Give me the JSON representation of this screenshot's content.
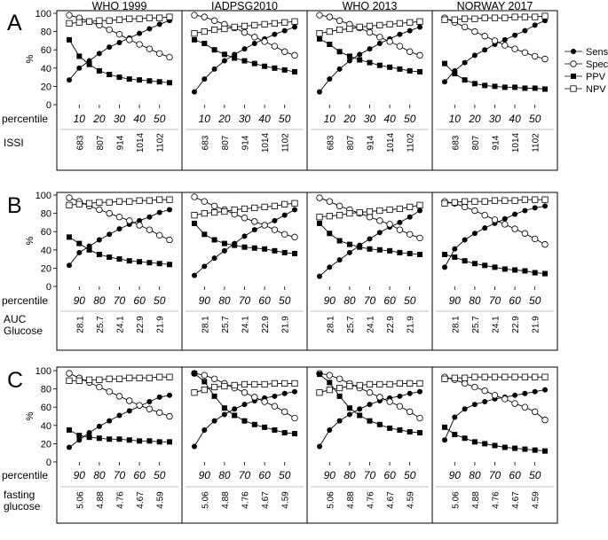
{
  "figure": {
    "columns": [
      "WHO 1999",
      "IADPSG2010",
      "WHO 2013",
      "NORWAY 2017"
    ],
    "legend": [
      "Sens",
      "Spec",
      "PPV",
      "NPV"
    ],
    "y_axis_label": "%",
    "y_ticks": [
      "0",
      "20",
      "40",
      "60",
      "80",
      "100"
    ],
    "percentile_label": "percentile"
  },
  "chart_data": [
    {
      "type": "line",
      "panel": "A",
      "metric_label": "ISSI",
      "percentile_ticks": [
        "10",
        "20",
        "30",
        "40",
        "50"
      ],
      "metric_ticks": [
        "683",
        "807",
        "914",
        "1014",
        "1102"
      ],
      "ylim": [
        0,
        100
      ],
      "x": [
        5,
        10,
        15,
        20,
        25,
        30,
        35,
        40,
        45,
        50,
        55
      ],
      "subplots": [
        {
          "title": "WHO 1999",
          "series": [
            {
              "name": "Sens",
              "values": [
                27,
                40,
                48,
                56,
                63,
                68,
                73,
                78,
                83,
                88,
                92
              ]
            },
            {
              "name": "Spec",
              "values": [
                98,
                95,
                91,
                87,
                82,
                77,
                71,
                66,
                61,
                56,
                52
              ]
            },
            {
              "name": "PPV",
              "values": [
                71,
                53,
                44,
                37,
                33,
                30,
                28,
                27,
                26,
                25,
                24
              ]
            },
            {
              "name": "NPV",
              "values": [
                89,
                90,
                91,
                92,
                92,
                93,
                94,
                94,
                95,
                95,
                96
              ]
            }
          ]
        },
        {
          "title": "IADPSG2010",
          "series": [
            {
              "name": "Sens",
              "values": [
                14,
                28,
                39,
                48,
                55,
                61,
                67,
                72,
                77,
                81,
                85
              ]
            },
            {
              "name": "Spec",
              "values": [
                98,
                96,
                92,
                88,
                84,
                79,
                74,
                69,
                64,
                58,
                54
              ]
            },
            {
              "name": "PPV",
              "values": [
                71,
                67,
                60,
                55,
                51,
                48,
                45,
                42,
                40,
                38,
                36
              ]
            },
            {
              "name": "NPV",
              "values": [
                78,
                80,
                82,
                83,
                85,
                86,
                87,
                88,
                89,
                90,
                91
              ]
            }
          ]
        },
        {
          "title": "WHO 2013",
          "series": [
            {
              "name": "Sens",
              "values": [
                14,
                28,
                39,
                48,
                55,
                61,
                67,
                72,
                77,
                81,
                85
              ]
            },
            {
              "name": "Spec",
              "values": [
                98,
                96,
                92,
                88,
                84,
                79,
                74,
                69,
                64,
                58,
                54
              ]
            },
            {
              "name": "PPV",
              "values": [
                72,
                66,
                58,
                53,
                49,
                46,
                43,
                41,
                39,
                37,
                36
              ]
            },
            {
              "name": "NPV",
              "values": [
                78,
                80,
                82,
                83,
                85,
                86,
                87,
                88,
                89,
                90,
                91
              ]
            }
          ]
        },
        {
          "title": "NORWAY 2017",
          "series": [
            {
              "name": "Sens",
              "values": [
                25,
                37,
                46,
                54,
                60,
                66,
                71,
                76,
                81,
                87,
                92
              ]
            },
            {
              "name": "Spec",
              "values": [
                95,
                90,
                85,
                80,
                75,
                70,
                65,
                61,
                57,
                53,
                50
              ]
            },
            {
              "name": "PPV",
              "values": [
                45,
                34,
                27,
                23,
                21,
                20,
                19,
                19,
                18,
                18,
                17
              ]
            },
            {
              "name": "NPV",
              "values": [
                93,
                93,
                94,
                94,
                95,
                95,
                95,
                96,
                96,
                96,
                97
              ]
            }
          ]
        }
      ]
    },
    {
      "type": "line",
      "panel": "B",
      "metric_label": "AUC\nGlucose",
      "percentile_ticks": [
        "90",
        "80",
        "70",
        "60",
        "50"
      ],
      "metric_ticks": [
        "28.1",
        "25.7",
        "24.1",
        "22.9",
        "21.9"
      ],
      "ylim": [
        0,
        100
      ],
      "x": [
        95,
        90,
        85,
        80,
        75,
        70,
        65,
        60,
        55,
        50,
        45
      ],
      "subplots": [
        {
          "title": "WHO 1999",
          "series": [
            {
              "name": "Sens",
              "values": [
                23,
                37,
                44,
                51,
                57,
                63,
                68,
                72,
                76,
                81,
                84
              ]
            },
            {
              "name": "Spec",
              "values": [
                97,
                93,
                88,
                84,
                80,
                76,
                72,
                67,
                62,
                56,
                51
              ]
            },
            {
              "name": "PPV",
              "values": [
                54,
                47,
                40,
                35,
                32,
                30,
                28,
                27,
                26,
                25,
                24
              ]
            },
            {
              "name": "NPV",
              "values": [
                89,
                90,
                91,
                92,
                92,
                93,
                93,
                94,
                94,
                95,
                95
              ]
            }
          ]
        },
        {
          "title": "IADPSG2010",
          "series": [
            {
              "name": "Sens",
              "values": [
                12,
                22,
                31,
                39,
                47,
                55,
                62,
                67,
                72,
                78,
                84
              ]
            },
            {
              "name": "Spec",
              "values": [
                98,
                93,
                88,
                84,
                79,
                75,
                71,
                67,
                62,
                57,
                54
              ]
            },
            {
              "name": "PPV",
              "values": [
                69,
                57,
                51,
                47,
                45,
                43,
                42,
                41,
                39,
                37,
                36
              ]
            },
            {
              "name": "NPV",
              "values": [
                78,
                80,
                81,
                82,
                84,
                85,
                86,
                87,
                88,
                90,
                91
              ]
            }
          ]
        },
        {
          "title": "WHO 2013",
          "series": [
            {
              "name": "Sens",
              "values": [
                11,
                21,
                29,
                37,
                45,
                52,
                59,
                65,
                70,
                76,
                83
              ]
            },
            {
              "name": "Spec",
              "values": [
                97,
                93,
                88,
                84,
                80,
                76,
                72,
                68,
                62,
                57,
                53
              ]
            },
            {
              "name": "PPV",
              "values": [
                69,
                58,
                50,
                46,
                43,
                41,
                40,
                39,
                37,
                36,
                35
              ]
            },
            {
              "name": "NPV",
              "values": [
                76,
                77,
                78,
                80,
                81,
                82,
                83,
                84,
                85,
                87,
                89
              ]
            }
          ]
        },
        {
          "title": "NORWAY 2017",
          "series": [
            {
              "name": "Sens",
              "values": [
                21,
                41,
                51,
                58,
                64,
                69,
                74,
                79,
                83,
                86,
                88
              ]
            },
            {
              "name": "Spec",
              "values": [
                93,
                91,
                87,
                83,
                78,
                73,
                68,
                63,
                58,
                52,
                46
              ]
            },
            {
              "name": "PPV",
              "values": [
                35,
                32,
                28,
                25,
                23,
                21,
                19,
                18,
                17,
                15,
                14
              ]
            },
            {
              "name": "NPV",
              "values": [
                91,
                92,
                93,
                93,
                93,
                94,
                94,
                94,
                95,
                95,
                95
              ]
            }
          ]
        }
      ]
    },
    {
      "type": "line",
      "panel": "C",
      "metric_label": "fasting\nglucose",
      "percentile_ticks": [
        "90",
        "80",
        "70",
        "60",
        "50"
      ],
      "metric_ticks": [
        "5.06",
        "4.88",
        "4.76",
        "4.67",
        "4.59"
      ],
      "ylim": [
        0,
        100
      ],
      "x": [
        95,
        90,
        85,
        80,
        75,
        70,
        65,
        60,
        55,
        50,
        45
      ],
      "subplots": [
        {
          "title": "WHO 1999",
          "series": [
            {
              "name": "Sens",
              "values": [
                16,
                24,
                32,
                39,
                45,
                51,
                56,
                61,
                66,
                71,
                73
              ]
            },
            {
              "name": "Spec",
              "values": [
                97,
                92,
                87,
                82,
                77,
                72,
                67,
                62,
                58,
                54,
                50
              ]
            },
            {
              "name": "PPV",
              "values": [
                35,
                29,
                27,
                26,
                25,
                25,
                24,
                23,
                23,
                22,
                22
              ]
            },
            {
              "name": "NPV",
              "values": [
                89,
                89,
                90,
                90,
                91,
                91,
                92,
                92,
                92,
                93,
                93
              ]
            }
          ]
        },
        {
          "title": "IADPSG2010",
          "series": [
            {
              "name": "Sens",
              "values": [
                17,
                35,
                45,
                52,
                58,
                63,
                67,
                70,
                72,
                75,
                77
              ]
            },
            {
              "name": "Spec",
              "values": [
                97,
                95,
                91,
                86,
                81,
                76,
                71,
                66,
                61,
                55,
                48
              ]
            },
            {
              "name": "PPV",
              "values": [
                97,
                88,
                72,
                59,
                51,
                45,
                41,
                38,
                35,
                32,
                31
              ]
            },
            {
              "name": "NPV",
              "values": [
                76,
                79,
                82,
                83,
                84,
                85,
                85,
                85,
                86,
                86,
                86
              ]
            }
          ]
        },
        {
          "title": "WHO 2013",
          "series": [
            {
              "name": "Sens",
              "values": [
                17,
                35,
                45,
                52,
                58,
                63,
                67,
                70,
                72,
                75,
                77
              ]
            },
            {
              "name": "Spec",
              "values": [
                97,
                95,
                91,
                86,
                81,
                76,
                71,
                66,
                61,
                55,
                48
              ]
            },
            {
              "name": "PPV",
              "values": [
                96,
                87,
                72,
                59,
                51,
                45,
                41,
                37,
                35,
                33,
                32
              ]
            },
            {
              "name": "NPV",
              "values": [
                76,
                79,
                81,
                83,
                84,
                85,
                85,
                85,
                86,
                86,
                86
              ]
            }
          ]
        },
        {
          "title": "NORWAY 2017",
          "series": [
            {
              "name": "Sens",
              "values": [
                24,
                49,
                58,
                63,
                66,
                69,
                71,
                73,
                75,
                77,
                79
              ]
            },
            {
              "name": "Spec",
              "values": [
                93,
                90,
                86,
                82,
                78,
                73,
                69,
                64,
                60,
                55,
                46
              ]
            },
            {
              "name": "PPV",
              "values": [
                38,
                30,
                26,
                22,
                20,
                18,
                16,
                15,
                14,
                13,
                12
              ]
            },
            {
              "name": "NPV",
              "values": [
                91,
                92,
                92,
                93,
                93,
                93,
                93,
                93,
                93,
                93,
                93
              ]
            }
          ]
        }
      ]
    }
  ]
}
